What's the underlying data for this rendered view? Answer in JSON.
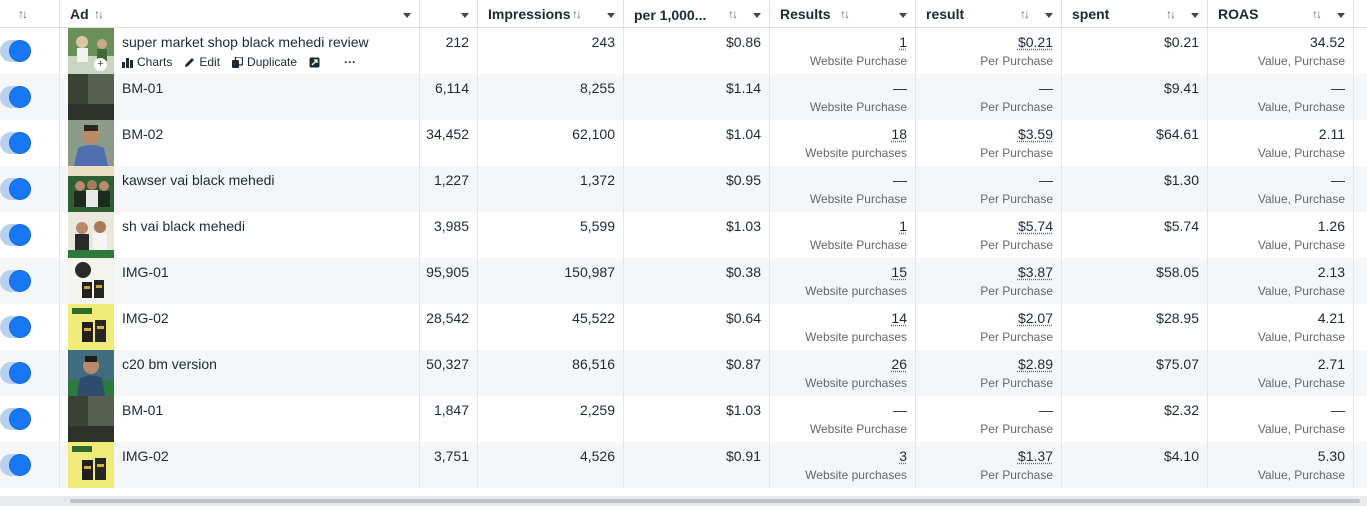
{
  "columns": {
    "ad": "Ad",
    "impressions": "Impressions",
    "cpm": "per 1,000...",
    "results": "Results",
    "cost_per_result": "result",
    "amount_spent": "spent",
    "roas": "ROAS"
  },
  "row_actions": {
    "charts": "Charts",
    "edit": "Edit",
    "duplicate": "Duplicate",
    "more": "···"
  },
  "rows": [
    {
      "name": "super market shop black mehedi review",
      "reach": "212",
      "impressions": "243",
      "cpm": "$0.86",
      "results": "1",
      "results_label": "Website Purchase",
      "cpr": "$0.21",
      "cpr_label": "Per Purchase",
      "spent": "$0.21",
      "roas": "34.52",
      "roas_label": "Value, Purchase",
      "thumb": "green"
    },
    {
      "name": "BM-01",
      "reach": "6,114",
      "impressions": "8,255",
      "cpm": "$1.14",
      "results": "—",
      "results_label": "Website Purchase",
      "cpr": "—",
      "cpr_label": "Per Purchase",
      "spent": "$9.41",
      "roas": "—",
      "roas_label": "Value, Purchase",
      "thumb": "dark"
    },
    {
      "name": "BM-02",
      "reach": "34,452",
      "impressions": "62,100",
      "cpm": "$1.04",
      "results": "18",
      "results_label": "Website purchases",
      "cpr": "$3.59",
      "cpr_label": "Per Purchase",
      "spent": "$64.61",
      "roas": "2.11",
      "roas_label": "Value, Purchase",
      "thumb": "person"
    },
    {
      "name": "kawser vai black mehedi",
      "reach": "1,227",
      "impressions": "1,372",
      "cpm": "$0.95",
      "results": "—",
      "results_label": "Website Purchase",
      "cpr": "—",
      "cpr_label": "Per Purchase",
      "spent": "$1.30",
      "roas": "—",
      "roas_label": "Value, Purchase",
      "thumb": "group"
    },
    {
      "name": "sh vai black mehedi",
      "reach": "3,985",
      "impressions": "5,599",
      "cpm": "$1.03",
      "results": "1",
      "results_label": "Website Purchase",
      "cpr": "$5.74",
      "cpr_label": "Per Purchase",
      "spent": "$5.74",
      "roas": "1.26",
      "roas_label": "Value, Purchase",
      "thumb": "group2"
    },
    {
      "name": "IMG-01",
      "reach": "95,905",
      "impressions": "150,987",
      "cpm": "$0.38",
      "results": "15",
      "results_label": "Website purchases",
      "cpr": "$3.87",
      "cpr_label": "Per Purchase",
      "spent": "$58.05",
      "roas": "2.13",
      "roas_label": "Value, Purchase",
      "thumb": "product"
    },
    {
      "name": "IMG-02",
      "reach": "28,542",
      "impressions": "45,522",
      "cpm": "$0.64",
      "results": "14",
      "results_label": "Website purchases",
      "cpr": "$2.07",
      "cpr_label": "Per Purchase",
      "spent": "$28.95",
      "roas": "4.21",
      "roas_label": "Value, Purchase",
      "thumb": "yellow"
    },
    {
      "name": "c20 bm version",
      "reach": "50,327",
      "impressions": "86,516",
      "cpm": "$0.87",
      "results": "26",
      "results_label": "Website purchases",
      "cpr": "$2.89",
      "cpr_label": "Per Purchase",
      "spent": "$75.07",
      "roas": "2.71",
      "roas_label": "Value, Purchase",
      "thumb": "person2"
    },
    {
      "name": "BM-01",
      "reach": "1,847",
      "impressions": "2,259",
      "cpm": "$1.03",
      "results": "—",
      "results_label": "Website Purchase",
      "cpr": "—",
      "cpr_label": "Per Purchase",
      "spent": "$2.32",
      "roas": "—",
      "roas_label": "Value, Purchase",
      "thumb": "dark"
    },
    {
      "name": "IMG-02",
      "reach": "3,751",
      "impressions": "4,526",
      "cpm": "$0.91",
      "results": "3",
      "results_label": "Website purchases",
      "cpr": "$1.37",
      "cpr_label": "Per Purchase",
      "spent": "$4.10",
      "roas": "5.30",
      "roas_label": "Value, Purchase",
      "thumb": "yellow"
    }
  ],
  "colors": {
    "toggle_on": "#1877f2",
    "row_alt": "#f5f6f7",
    "border": "#dddfe2"
  }
}
